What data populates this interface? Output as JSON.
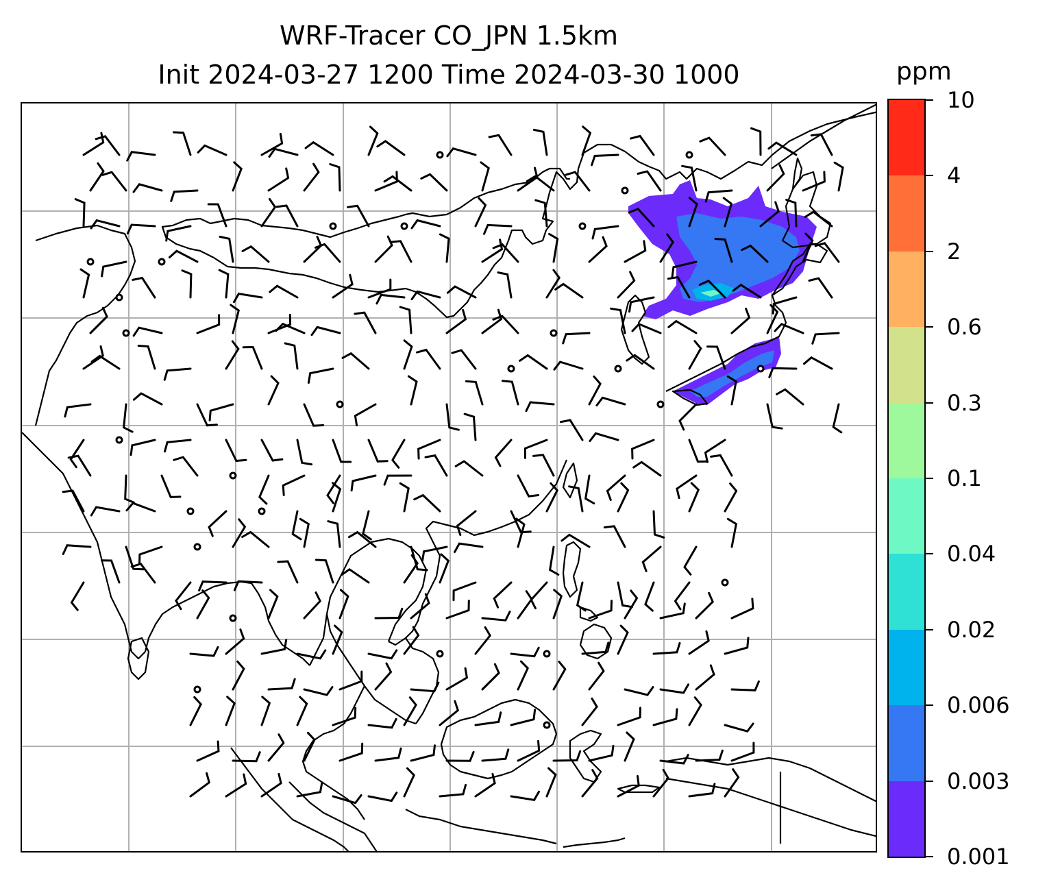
{
  "title": {
    "line1": "WRF-Tracer CO_JPN 1.5km",
    "line2": "Init 2024-03-27 1200 Time 2024-03-30 1000"
  },
  "colorbar": {
    "unit": "ppm",
    "levels": [
      "0.001",
      "0.003",
      "0.006",
      "0.02",
      "0.04",
      "0.1",
      "0.3",
      "0.6",
      "2",
      "4",
      "10"
    ],
    "colors": [
      "#6a2bfb",
      "#3677f3",
      "#00b3ec",
      "#2fe0d5",
      "#6ef9c4",
      "#9ef99d",
      "#d1e28a",
      "#ffb061",
      "#ff7039",
      "#ff2a17"
    ]
  },
  "map": {
    "gridlines": true,
    "coastline_color": "#000000",
    "gridline_color": "#b0b0b0",
    "barb_color": "#000000"
  }
}
